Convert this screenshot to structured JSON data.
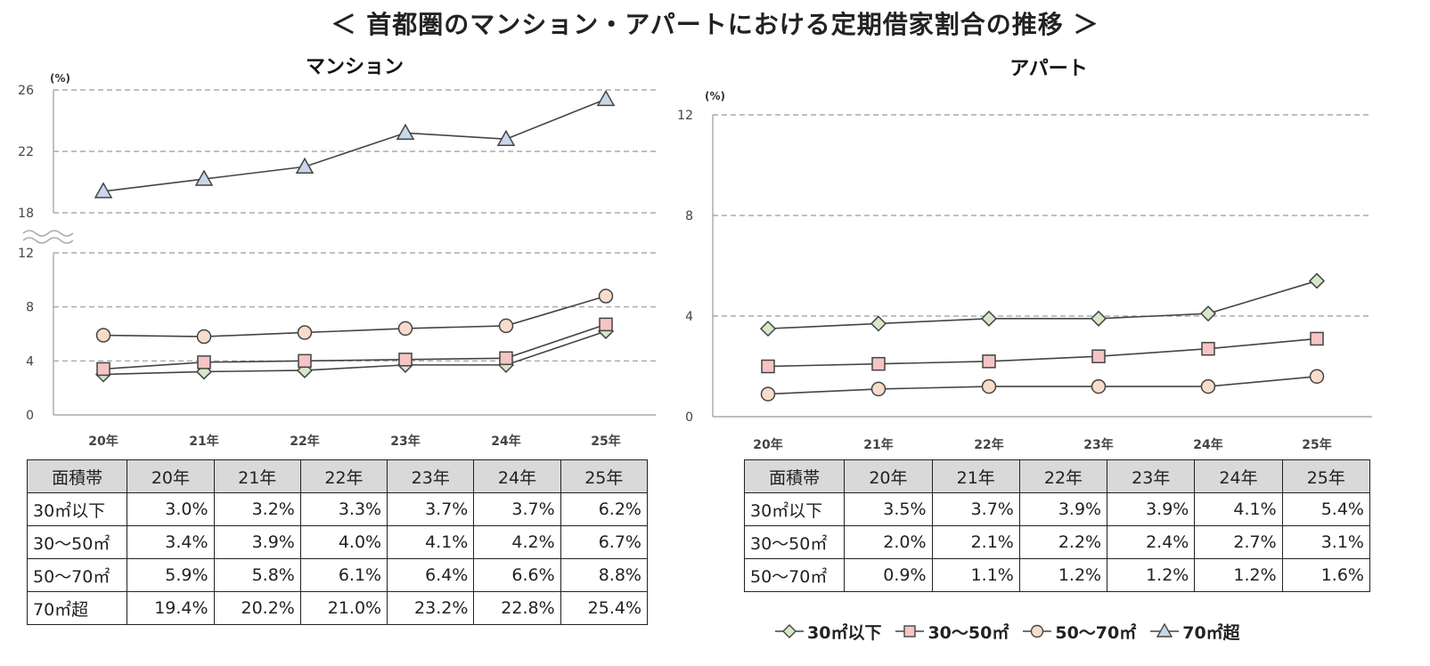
{
  "page_title": "＜ 首都圏のマンション・アパートにおける定期借家割合の推移 ＞",
  "chart_data": [
    {
      "type": "line",
      "title": "マンション",
      "unit_label": "(%)",
      "categories": [
        "20年",
        "21年",
        "22年",
        "23年",
        "24年",
        "25年"
      ],
      "y_ticks_upper": [
        "26",
        "22",
        "18"
      ],
      "y_ticks_lower": [
        "12",
        "8",
        "4",
        "0"
      ],
      "ylim_upper": [
        18,
        26
      ],
      "ylim_lower": [
        0,
        12
      ],
      "axis_break": true,
      "grid": "dashed",
      "series": [
        {
          "name": "30㎡以下",
          "marker": "diamond",
          "color": "#d6e8c8",
          "values": [
            3.0,
            3.2,
            3.3,
            3.7,
            3.7,
            6.2
          ]
        },
        {
          "name": "30～50㎡",
          "marker": "square",
          "color": "#f6c4c4",
          "values": [
            3.4,
            3.9,
            4.0,
            4.1,
            4.2,
            6.7
          ]
        },
        {
          "name": "50～70㎡",
          "marker": "circle",
          "color": "#f8dccb",
          "values": [
            5.9,
            5.8,
            6.1,
            6.4,
            6.6,
            8.8
          ]
        },
        {
          "name": "70㎡超",
          "marker": "triangle",
          "color": "#c9d7ea",
          "values": [
            19.4,
            20.2,
            21.0,
            23.2,
            22.8,
            25.4
          ]
        }
      ],
      "table": {
        "header": [
          "面積帯",
          "20年",
          "21年",
          "22年",
          "23年",
          "24年",
          "25年"
        ],
        "rows": [
          [
            "30㎡以下",
            "3.0%",
            "3.2%",
            "3.3%",
            "3.7%",
            "3.7%",
            "6.2%"
          ],
          [
            "30～50㎡",
            "3.4%",
            "3.9%",
            "4.0%",
            "4.1%",
            "4.2%",
            "6.7%"
          ],
          [
            "50～70㎡",
            "5.9%",
            "5.8%",
            "6.1%",
            "6.4%",
            "6.6%",
            "8.8%"
          ],
          [
            "70㎡超",
            "19.4%",
            "20.2%",
            "21.0%",
            "23.2%",
            "22.8%",
            "25.4%"
          ]
        ]
      }
    },
    {
      "type": "line",
      "title": "アパート",
      "unit_label": "(%)",
      "categories": [
        "20年",
        "21年",
        "22年",
        "23年",
        "24年",
        "25年"
      ],
      "y_ticks": [
        "12",
        "8",
        "4",
        "0"
      ],
      "ylim": [
        0,
        12
      ],
      "grid": "dashed",
      "series": [
        {
          "name": "30㎡以下",
          "marker": "diamond",
          "color": "#d6e8c8",
          "values": [
            3.5,
            3.7,
            3.9,
            3.9,
            4.1,
            5.4
          ]
        },
        {
          "name": "30～50㎡",
          "marker": "square",
          "color": "#f6c4c4",
          "values": [
            2.0,
            2.1,
            2.2,
            2.4,
            2.7,
            3.1
          ]
        },
        {
          "name": "50～70㎡",
          "marker": "circle",
          "color": "#f8dccb",
          "values": [
            0.9,
            1.1,
            1.2,
            1.2,
            1.2,
            1.6
          ]
        }
      ],
      "table": {
        "header": [
          "面積帯",
          "20年",
          "21年",
          "22年",
          "23年",
          "24年",
          "25年"
        ],
        "rows": [
          [
            "30㎡以下",
            "3.5%",
            "3.7%",
            "3.9%",
            "3.9%",
            "4.1%",
            "5.4%"
          ],
          [
            "30～50㎡",
            "2.0%",
            "2.1%",
            "2.2%",
            "2.4%",
            "2.7%",
            "3.1%"
          ],
          [
            "50～70㎡",
            "0.9%",
            "1.1%",
            "1.2%",
            "1.2%",
            "1.2%",
            "1.6%"
          ]
        ]
      }
    }
  ],
  "legend": [
    {
      "label": "30㎡以下",
      "marker": "diamond",
      "color": "#d6e8c8"
    },
    {
      "label": "30～50㎡",
      "marker": "square",
      "color": "#f6c4c4"
    },
    {
      "label": "50～70㎡",
      "marker": "circle",
      "color": "#f8dccb"
    },
    {
      "label": "70㎡超",
      "marker": "triangle",
      "color": "#c9d7ea"
    }
  ]
}
